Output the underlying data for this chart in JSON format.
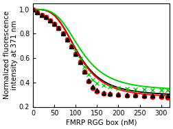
{
  "title": "",
  "xlabel": "FMRP RGG box (nM)",
  "ylabel": "Normalized fluorescence\nintensity at 371 nm",
  "xlim": [
    0,
    320
  ],
  "ylim": [
    0.2,
    1.05
  ],
  "yticks": [
    0.2,
    0.4,
    0.6,
    0.8,
    1.0
  ],
  "xticks": [
    0,
    50,
    100,
    150,
    200,
    250,
    300
  ],
  "series": [
    {
      "name": "black_triangles",
      "x": [
        0,
        10,
        20,
        30,
        40,
        50,
        60,
        70,
        80,
        90,
        100,
        110,
        120,
        130,
        140,
        150,
        165,
        180,
        200,
        220,
        240,
        260,
        280,
        300,
        315
      ],
      "y": [
        1.0,
        0.975,
        0.955,
        0.935,
        0.91,
        0.88,
        0.845,
        0.8,
        0.75,
        0.695,
        0.635,
        0.565,
        0.49,
        0.415,
        0.365,
        0.335,
        0.315,
        0.31,
        0.305,
        0.3,
        0.298,
        0.295,
        0.293,
        0.29,
        0.29
      ],
      "color": "#000000",
      "marker": "^",
      "markersize": 4.5,
      "zorder": 4
    },
    {
      "name": "red_circles",
      "x": [
        0,
        10,
        20,
        30,
        40,
        50,
        60,
        70,
        80,
        90,
        100,
        110,
        120,
        130,
        140,
        150,
        165,
        180,
        200,
        220,
        240,
        260,
        280,
        300,
        315
      ],
      "y": [
        1.0,
        0.975,
        0.955,
        0.935,
        0.91,
        0.88,
        0.845,
        0.8,
        0.75,
        0.695,
        0.635,
        0.565,
        0.49,
        0.41,
        0.355,
        0.325,
        0.31,
        0.305,
        0.3,
        0.295,
        0.29,
        0.285,
        0.282,
        0.28,
        0.278
      ],
      "color": "#ff0000",
      "marker": "o",
      "markersize": 4.5,
      "zorder": 3
    },
    {
      "name": "green_crosses",
      "x": [
        0,
        10,
        20,
        30,
        40,
        50,
        60,
        70,
        80,
        90,
        100,
        110,
        120,
        130,
        140,
        150,
        165,
        180,
        200,
        220,
        240,
        260,
        280,
        300,
        315
      ],
      "y": [
        1.0,
        0.975,
        0.955,
        0.935,
        0.91,
        0.88,
        0.845,
        0.8,
        0.755,
        0.705,
        0.655,
        0.595,
        0.53,
        0.465,
        0.42,
        0.395,
        0.375,
        0.365,
        0.355,
        0.348,
        0.345,
        0.342,
        0.34,
        0.338,
        0.336
      ],
      "color": "#00cc00",
      "marker": "x",
      "markersize": 4.5,
      "zorder": 2
    }
  ],
  "fit_curves": [
    {
      "name": "black_fit",
      "color": "#000000",
      "linewidth": 1.4,
      "Kd": 105,
      "hill": 3.5,
      "ymin": 0.29,
      "ymax": 1.0
    },
    {
      "name": "red_fit",
      "color": "#ff0000",
      "linewidth": 1.4,
      "Kd": 105,
      "hill": 3.5,
      "ymin": 0.275,
      "ymax": 1.0
    },
    {
      "name": "green_fit",
      "color": "#00cc00",
      "linewidth": 1.4,
      "Kd": 112,
      "hill": 3.5,
      "ymin": 0.334,
      "ymax": 1.0
    }
  ],
  "background_color": "#ffffff",
  "tick_fontsize": 7,
  "label_fontsize": 7.5
}
